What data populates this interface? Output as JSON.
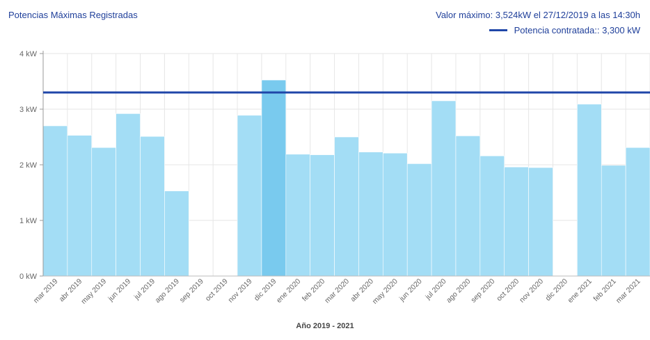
{
  "header": {
    "title": "Potencias Máximas Registradas",
    "max_value_text": "Valor máximo:  3,524kW el 27/12/2019 a las 14:30h",
    "legend_label": "Potencia contratada::  3,300 kW"
  },
  "colors": {
    "bar": "#a3ddf5",
    "bar_highlight": "#79caee",
    "contract_line": "#1f46a8",
    "grid": "#e6e6e6",
    "text": "#1f3f9a"
  },
  "chart_data": {
    "type": "bar",
    "title": "Potencias Máximas Registradas",
    "xlabel": "Año  2019 - 2021",
    "ylabel": "",
    "ylim": [
      0,
      4
    ],
    "yticks": [
      "0 kW",
      "1 kW",
      "2 kW",
      "3 kW",
      "4 kW"
    ],
    "categories": [
      "mar 2019",
      "abr 2019",
      "may 2019",
      "jun 2019",
      "jul 2019",
      "ago 2019",
      "sep 2019",
      "oct 2019",
      "nov 2019",
      "dic 2019",
      "ene 2020",
      "feb 2020",
      "mar 2020",
      "abr 2020",
      "may 2020",
      "jun 2020",
      "jul 2020",
      "ago 2020",
      "sep 2020",
      "oct 2020",
      "nov 2020",
      "dic 2020",
      "ene 2021",
      "feb 2021",
      "mar 2021"
    ],
    "values": [
      2.7,
      2.53,
      2.31,
      2.92,
      2.51,
      1.53,
      0,
      0,
      2.89,
      3.524,
      2.19,
      2.18,
      2.5,
      2.23,
      2.21,
      2.02,
      3.15,
      2.52,
      2.16,
      1.96,
      1.95,
      0,
      3.09,
      1.99,
      2.31
    ],
    "highlight_index": 9,
    "reference_line": {
      "name": "Potencia contratada",
      "value": 3.3
    },
    "grid": true,
    "legend_position": "top-right"
  }
}
